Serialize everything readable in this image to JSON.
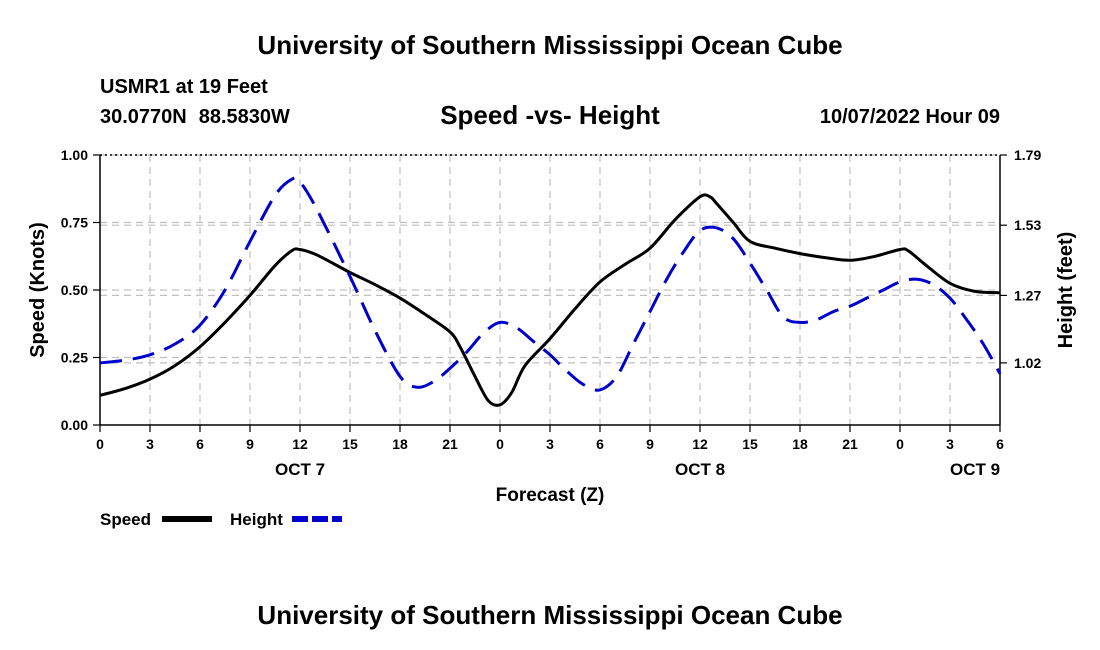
{
  "header": {
    "title": "University of Southern Mississippi Ocean Cube",
    "station": "USMR1 at 19 Feet",
    "lat": "30.0770N",
    "lon": "88.5830W",
    "subtitle": "Speed -vs- Height",
    "timestamp": "10/07/2022 Hour 09"
  },
  "footer": {
    "title": "University of Southern Mississippi Ocean Cube"
  },
  "chart_data": {
    "type": "line",
    "xlabel": "Forecast (Z)",
    "ylabel": "Speed (Knots)",
    "y2label": "Height (feet)",
    "xlim": [
      0,
      54
    ],
    "ylim": [
      0,
      1
    ],
    "y2lim": [
      0.79,
      1.79
    ],
    "x_ticks": [
      0,
      3,
      6,
      9,
      12,
      15,
      18,
      21,
      24,
      27,
      30,
      33,
      36,
      39,
      42,
      45,
      48,
      51,
      54
    ],
    "x_tick_labels": [
      "0",
      "3",
      "6",
      "9",
      "12",
      "15",
      "18",
      "21",
      "0",
      "3",
      "6",
      "9",
      "12",
      "15",
      "18",
      "21",
      "0",
      "3",
      "6"
    ],
    "day_labels": [
      {
        "x": 12,
        "label": "OCT 7"
      },
      {
        "x": 36,
        "label": "OCT 8"
      },
      {
        "x": 52.5,
        "label": "OCT 9"
      }
    ],
    "y_ticks": [
      0,
      0.25,
      0.5,
      0.75,
      1.0
    ],
    "y_tick_labels": [
      "0.00",
      "0.25",
      "0.50",
      "0.75",
      "1.00"
    ],
    "y2_ticks": [
      1.02,
      1.27,
      1.53,
      1.79
    ],
    "y2_tick_labels": [
      "1.02",
      "1.27",
      "1.53",
      "1.79"
    ],
    "grid": true,
    "legend_position": "bottom-left",
    "colors": {
      "speed": "#000000",
      "height": "#0000cc",
      "grid": "#c0c0c0"
    },
    "series": [
      {
        "name": "Speed",
        "axis": "left",
        "style": "solid",
        "x": [
          0,
          1.5,
          3,
          4.5,
          6,
          7.5,
          9,
          10.5,
          11.5,
          12,
          13,
          15,
          16.5,
          18,
          19.5,
          21,
          21.6,
          22.5,
          23.3,
          24,
          24.7,
          25.5,
          27,
          28.5,
          30,
          31.5,
          33,
          34.5,
          36,
          36.6,
          37,
          38,
          39,
          40.5,
          42,
          43.5,
          45,
          46.5,
          48,
          48.5,
          49.5,
          51,
          52.5,
          54
        ],
        "values": [
          0.11,
          0.135,
          0.17,
          0.22,
          0.29,
          0.38,
          0.48,
          0.59,
          0.645,
          0.65,
          0.63,
          0.565,
          0.52,
          0.47,
          0.41,
          0.345,
          0.29,
          0.18,
          0.09,
          0.075,
          0.12,
          0.22,
          0.32,
          0.43,
          0.53,
          0.595,
          0.655,
          0.76,
          0.845,
          0.845,
          0.82,
          0.75,
          0.68,
          0.655,
          0.635,
          0.62,
          0.61,
          0.625,
          0.65,
          0.645,
          0.595,
          0.525,
          0.495,
          0.49
        ]
      },
      {
        "name": "Height",
        "axis": "right",
        "style": "dashed",
        "x": [
          0,
          1.5,
          3,
          4.5,
          6,
          7.5,
          9,
          10.5,
          11.5,
          12,
          13,
          15,
          16.5,
          18,
          19,
          20,
          21,
          22,
          23,
          24,
          25,
          26,
          27,
          28,
          29,
          30,
          31,
          32,
          33,
          34,
          35,
          36,
          37,
          38,
          39,
          40,
          41,
          42,
          43,
          44,
          45,
          46,
          47,
          48,
          49,
          50,
          51,
          52,
          53,
          54
        ],
        "values": [
          1.02,
          1.03,
          1.05,
          1.09,
          1.16,
          1.29,
          1.47,
          1.64,
          1.7,
          1.69,
          1.59,
          1.34,
          1.14,
          0.97,
          0.93,
          0.95,
          1.0,
          1.06,
          1.13,
          1.17,
          1.15,
          1.1,
          1.05,
          0.99,
          0.94,
          0.92,
          0.97,
          1.09,
          1.21,
          1.33,
          1.43,
          1.51,
          1.52,
          1.48,
          1.39,
          1.29,
          1.19,
          1.17,
          1.18,
          1.21,
          1.23,
          1.26,
          1.29,
          1.32,
          1.33,
          1.31,
          1.26,
          1.18,
          1.09,
          0.98
        ]
      }
    ]
  }
}
